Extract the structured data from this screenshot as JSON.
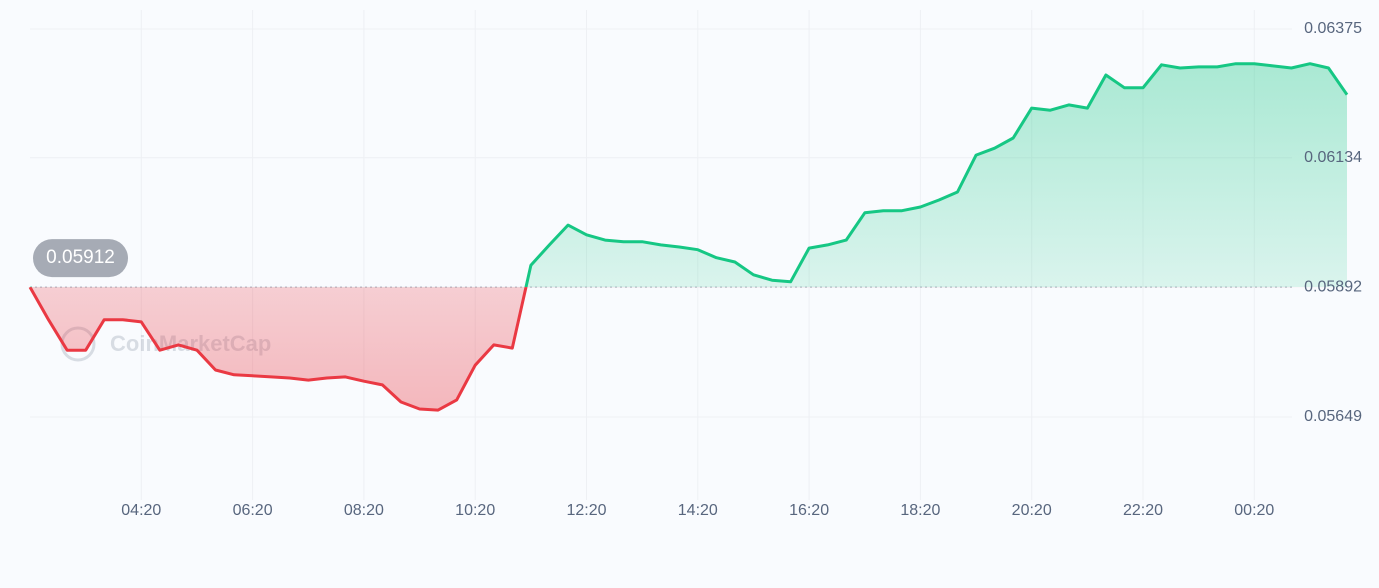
{
  "chart_data": {
    "type": "line",
    "watermark": "CoinMarketCap",
    "open_price": 0.05912,
    "baseline": 0.05892,
    "up_color": "#16c784",
    "down_color": "#ea3943",
    "x": [
      "02:20",
      "02:40",
      "03:00",
      "03:20",
      "03:40",
      "04:00",
      "04:20",
      "04:40",
      "05:00",
      "05:20",
      "05:40",
      "06:00",
      "06:20",
      "06:40",
      "07:00",
      "07:20",
      "07:40",
      "08:00",
      "08:20",
      "08:40",
      "09:00",
      "09:20",
      "09:40",
      "10:00",
      "10:20",
      "10:40",
      "11:00",
      "11:20",
      "11:40",
      "12:00",
      "12:20",
      "12:40",
      "13:00",
      "13:20",
      "13:40",
      "14:00",
      "14:20",
      "14:40",
      "15:00",
      "15:20",
      "15:40",
      "16:00",
      "16:20",
      "16:40",
      "17:00",
      "17:20",
      "17:40",
      "18:00",
      "18:20",
      "18:40",
      "19:00",
      "19:20",
      "19:40",
      "20:00",
      "20:20",
      "20:40",
      "21:00",
      "21:20",
      "21:40",
      "22:00",
      "22:20",
      "22:40",
      "23:00",
      "23:20",
      "23:40",
      "00:00",
      "00:20",
      "00:40",
      "01:00",
      "01:20",
      "01:40",
      "02:00"
    ],
    "values": [
      0.05892,
      0.05831,
      0.05774,
      0.05774,
      0.05831,
      0.05831,
      0.05827,
      0.05774,
      0.05784,
      0.05774,
      0.05737,
      0.05728,
      0.05726,
      0.05724,
      0.05722,
      0.05718,
      0.05722,
      0.05724,
      0.05716,
      0.05709,
      0.05677,
      0.05664,
      0.05662,
      0.05681,
      0.05746,
      0.05784,
      0.05778,
      0.05933,
      0.05971,
      0.06008,
      0.0599,
      0.0598,
      0.05977,
      0.05977,
      0.05971,
      0.05967,
      0.05962,
      0.05947,
      0.05939,
      0.05915,
      0.05905,
      0.05902,
      0.05965,
      0.05971,
      0.0598,
      0.06031,
      0.06035,
      0.06035,
      0.06042,
      0.06055,
      0.0607,
      0.06139,
      0.06152,
      0.06171,
      0.06227,
      0.06223,
      0.06233,
      0.06227,
      0.06289,
      0.06265,
      0.06265,
      0.06308,
      0.06302,
      0.06304,
      0.06304,
      0.0631,
      0.0631,
      0.06306,
      0.06302,
      0.0631,
      0.06302,
      0.06252
    ],
    "xticks": [
      "04:20",
      "06:20",
      "08:20",
      "10:20",
      "12:20",
      "14:20",
      "16:20",
      "18:20",
      "20:20",
      "22:20",
      "00:20"
    ],
    "ylim": [
      0.05649,
      0.06375
    ],
    "yticks": [
      0.05649,
      0.05892,
      0.06134,
      0.06375
    ],
    "grid": true
  }
}
